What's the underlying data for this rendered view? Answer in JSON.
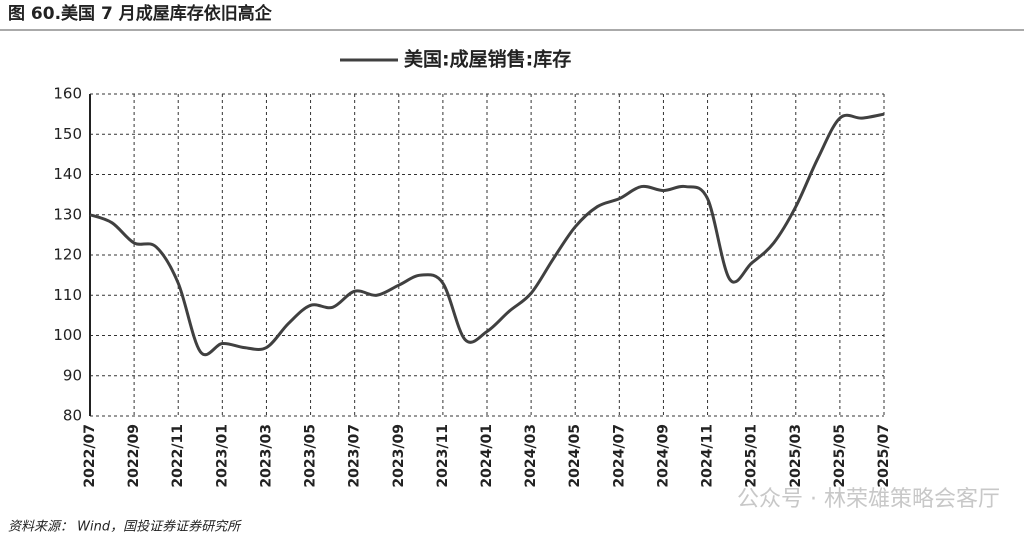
{
  "header": {
    "title": "图 60.美国 7 月成屋库存依旧高企"
  },
  "chart_data": {
    "type": "line",
    "categories": [
      "2022/07",
      null,
      "2022/09",
      null,
      "2022/11",
      null,
      "2023/01",
      null,
      "2023/03",
      null,
      "2023/05",
      null,
      "2023/07",
      null,
      "2023/09",
      null,
      "2023/11",
      null,
      "2024/01",
      null,
      "2024/03",
      null,
      "2024/05",
      null,
      "2024/07",
      null,
      "2024/09",
      null,
      "2024/11",
      null,
      "2025/01",
      null,
      "2025/03",
      null,
      "2025/05",
      null,
      "2025/07"
    ],
    "series": [
      {
        "name": "美国:成屋销售:库存",
        "color": "#404040",
        "values": [
          130,
          128,
          123,
          122,
          113,
          96,
          98,
          97,
          97,
          103,
          107.5,
          107,
          111,
          110,
          112.5,
          115,
          113,
          99,
          101,
          106,
          110.5,
          119,
          127,
          132,
          134,
          137,
          136,
          137,
          134,
          114,
          118,
          123,
          132,
          144,
          154,
          154,
          155
        ]
      }
    ],
    "ylim": [
      80,
      160
    ],
    "yticks": [
      80,
      90,
      100,
      110,
      120,
      130,
      140,
      150,
      160
    ],
    "grid": true
  },
  "footer": {
    "source": "资料来源： Wind，国投证券证券研究所",
    "watermark": "公众号 · 林荣雄策略会客厅"
  }
}
